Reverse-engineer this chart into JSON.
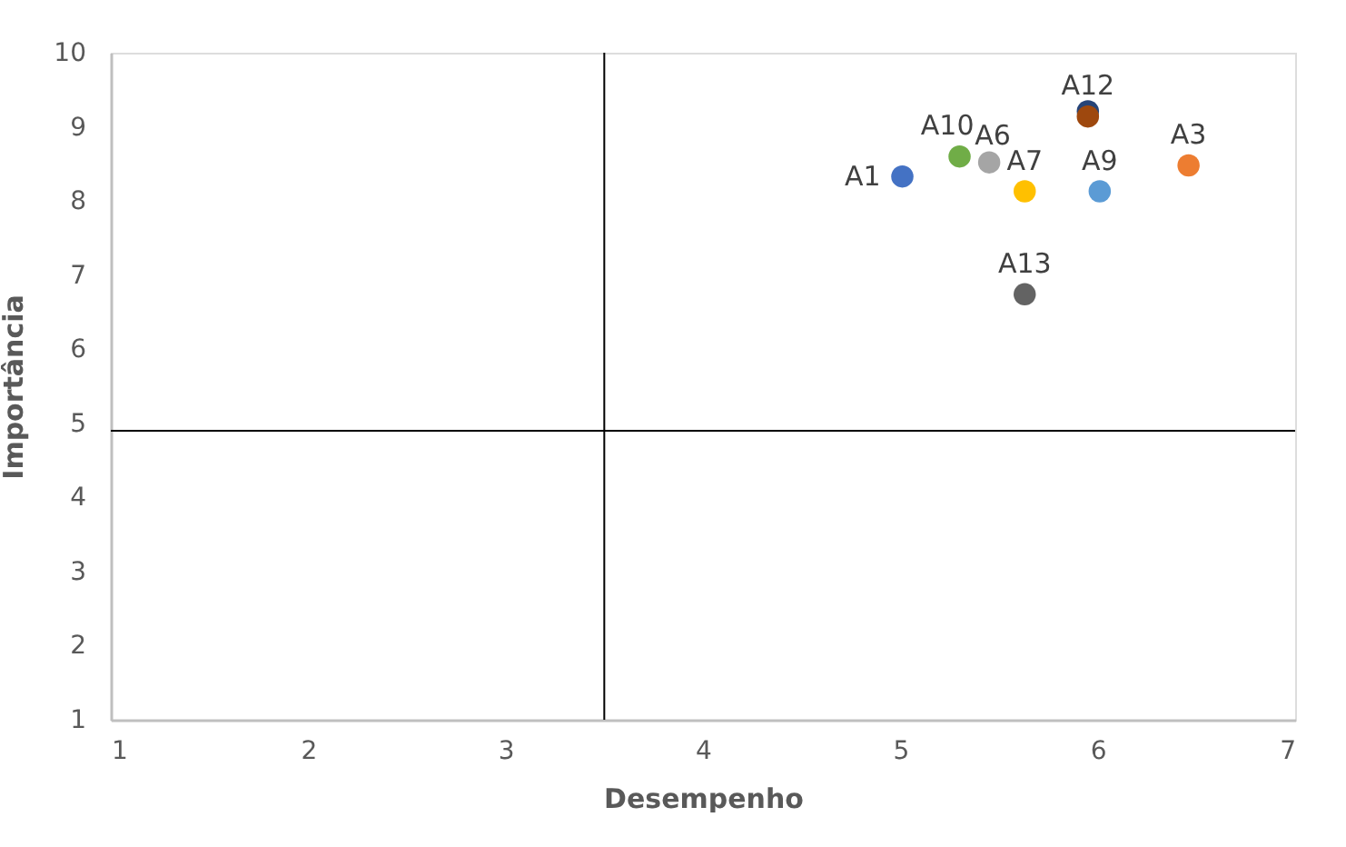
{
  "chart_data": {
    "type": "scatter",
    "xlabel": "Desempenho",
    "ylabel": "Importância",
    "xlim": [
      1,
      7
    ],
    "xticks": [
      1,
      2,
      3,
      4,
      5,
      6,
      7
    ],
    "ylim": [
      1,
      10
    ],
    "yticks": [
      1,
      2,
      3,
      4,
      5,
      6,
      7,
      8,
      9,
      10
    ],
    "grid": false,
    "legend": false,
    "marker": "circle",
    "ref_lines": [
      {
        "axis": "x",
        "value": 3.5,
        "color": "#000000"
      },
      {
        "axis": "y",
        "value": 4.9,
        "color": "#000000"
      }
    ],
    "series": [
      {
        "name": "A1",
        "color": "#4472c4",
        "x": [
          5.01
        ],
        "values": [
          8.33
        ]
      },
      {
        "name": "A10",
        "color": "#70ad47",
        "x": [
          5.3
        ],
        "values": [
          8.6
        ]
      },
      {
        "name": "A6",
        "color": "#a5a5a5",
        "x": [
          5.45
        ],
        "values": [
          8.52
        ]
      },
      {
        "name": "A7",
        "color": "#ffc000",
        "x": [
          5.63
        ],
        "values": [
          8.13
        ]
      },
      {
        "color": "#264478",
        "x": [
          5.95
        ],
        "values": [
          9.21
        ]
      },
      {
        "name": "A12",
        "color": "#9e480e",
        "x": [
          5.95
        ],
        "values": [
          9.14
        ]
      },
      {
        "name": "A9",
        "color": "#5b9bd5",
        "x": [
          6.01
        ],
        "values": [
          8.13
        ]
      },
      {
        "name": "A3",
        "color": "#ed7d31",
        "x": [
          6.46
        ],
        "values": [
          8.48
        ]
      },
      {
        "name": "A13",
        "color": "#636363",
        "x": [
          5.63
        ],
        "values": [
          6.74
        ]
      }
    ]
  }
}
